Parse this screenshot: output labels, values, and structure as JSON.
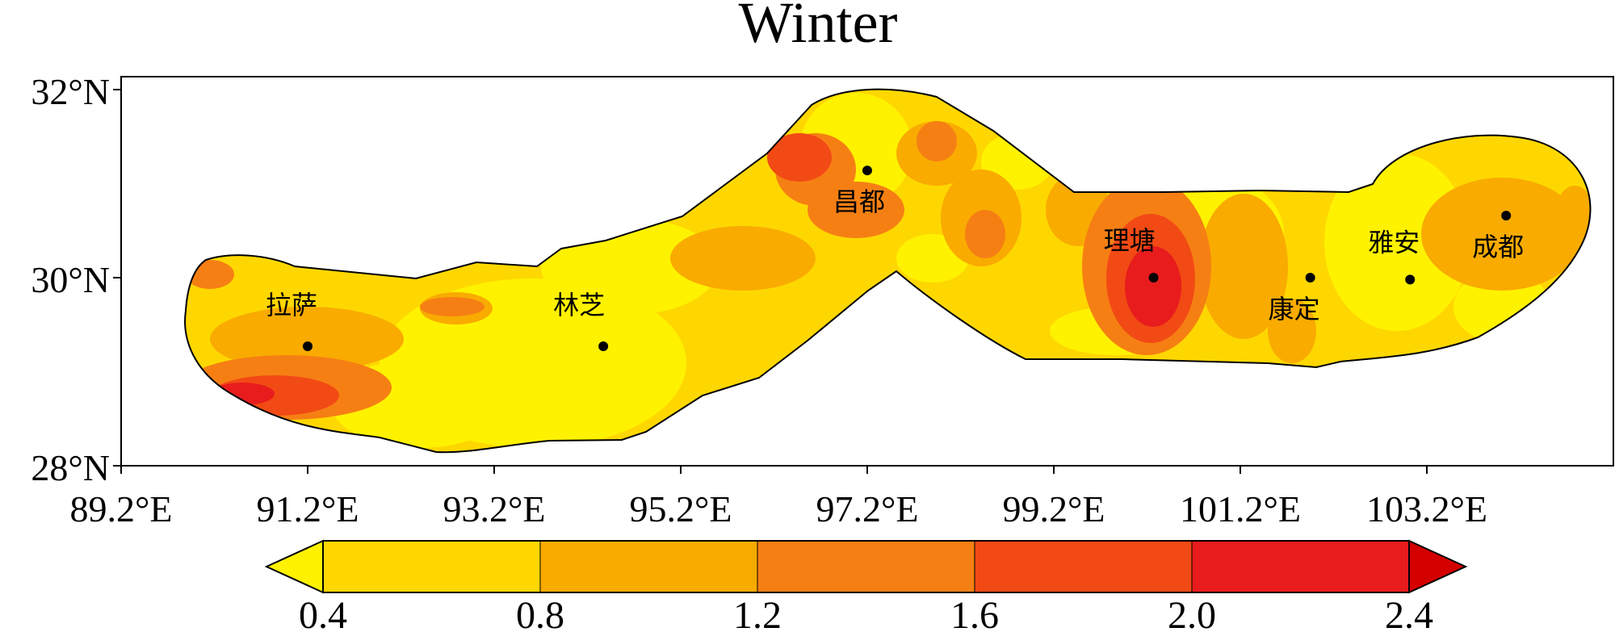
{
  "title": "Winter",
  "axes": {
    "lat_ticks": [
      {
        "value": 28,
        "label": "28°N"
      },
      {
        "value": 30,
        "label": "30°N"
      },
      {
        "value": 32,
        "label": "32°N"
      }
    ],
    "lon_ticks": [
      {
        "value": 89.2,
        "label": "89.2°E"
      },
      {
        "value": 91.2,
        "label": "91.2°E"
      },
      {
        "value": 93.2,
        "label": "93.2°E"
      },
      {
        "value": 95.2,
        "label": "95.2°E"
      },
      {
        "value": 97.2,
        "label": "97.2°E"
      },
      {
        "value": 99.2,
        "label": "99.2°E"
      },
      {
        "value": 101.2,
        "label": "101.2°E"
      },
      {
        "value": 103.2,
        "label": "103.2°E"
      }
    ],
    "lon_range": [
      89.2,
      105.2
    ],
    "lat_range": [
      28,
      32.2
    ]
  },
  "cities": [
    {
      "name": "拉萨",
      "lon": 91.2,
      "lat": 29.27
    },
    {
      "name": "林芝",
      "lon": 94.37,
      "lat": 29.27
    },
    {
      "name": "昌都",
      "lon": 97.2,
      "lat": 31.14
    },
    {
      "name": "理塘",
      "lon": 100.27,
      "lat": 30.0
    },
    {
      "name": "康定",
      "lon": 101.95,
      "lat": 30.0
    },
    {
      "name": "雅安",
      "lon": 103.02,
      "lat": 29.98
    },
    {
      "name": "成都",
      "lon": 104.05,
      "lat": 30.66
    }
  ],
  "colorbar": {
    "ticks": [
      "0.4",
      "0.8",
      "1.2",
      "1.6",
      "2.0",
      "2.4"
    ],
    "colors": [
      "#fff200",
      "#ffd700",
      "#f9ab00",
      "#f67f14",
      "#f24a14",
      "#e81c1c",
      "#d40000"
    ]
  }
}
